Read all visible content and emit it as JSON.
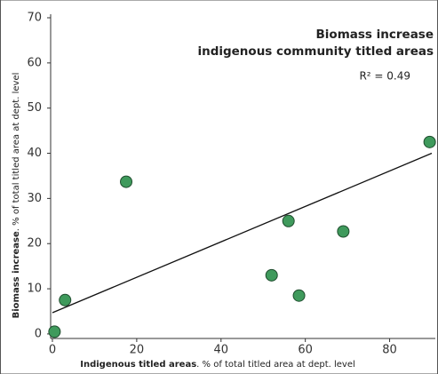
{
  "chart_data": {
    "type": "scatter",
    "annotation_lines": [
      "Biomass increase",
      "indigenous community titled areas"
    ],
    "r_squared_label": "R² = 0.49",
    "x_label_bold": "Indigenous titled areas",
    "x_label_rest": ". % of total titled area at dept. level",
    "y_label_bold": "Biomass increase",
    "y_label_rest": ". % of total titled area at dept. level",
    "x": [
      0.5,
      3,
      17.5,
      52,
      56,
      58.5,
      69,
      89.5
    ],
    "values": [
      0.5,
      7.5,
      33.7,
      13,
      25,
      8.5,
      22.7,
      42.5
    ],
    "color": "#3f9a5c",
    "trendline": {
      "x": [
        0,
        90
      ],
      "y": [
        4.7,
        40
      ],
      "color": "#111111"
    },
    "xlim": [
      0,
      90
    ],
    "xticks": [
      0,
      20,
      40,
      60,
      80
    ],
    "ylim": [
      -1,
      70
    ],
    "yticks": [
      0,
      10,
      20,
      30,
      40,
      50,
      60,
      70
    ],
    "grid": false
  }
}
